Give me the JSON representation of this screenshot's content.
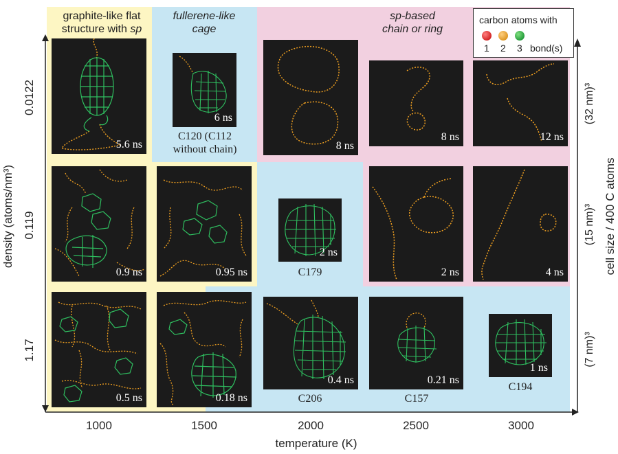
{
  "regions": {
    "graphite": {
      "line1": "graphite-like flat",
      "line2": "structure with ",
      "line2_italic": "sp"
    },
    "fullerene": {
      "line1": "fullerene-like",
      "line2": "cage"
    },
    "sp_chain": {
      "line1": "sp-based",
      "line2": "chain or ring"
    }
  },
  "legend": {
    "title": "carbon atoms with",
    "items": [
      {
        "num": "1",
        "color": "#e02020"
      },
      {
        "num": "2",
        "color": "#f0a020"
      },
      {
        "num": "3",
        "color": "#20b040"
      }
    ],
    "suffix": "bond(s)"
  },
  "x_axis": {
    "label": "temperature (K)",
    "ticks": [
      "1000",
      "1500",
      "2000",
      "2500",
      "3000"
    ]
  },
  "y_axis": {
    "label": "density (atoms/nm³)",
    "ticks": [
      "0.0122",
      "0.119",
      "1.17"
    ]
  },
  "right_axis": {
    "label": "cell size / 400 C atoms",
    "ticks": [
      "(32 nm)³",
      "(15 nm)³",
      "(7 nm)³"
    ]
  },
  "panels": {
    "r1c1": {
      "time": "5.6 ns"
    },
    "r1c2": {
      "time": "6 ns",
      "caption": "C120 (C112",
      "caption2": "without chain)"
    },
    "r1c3": {
      "time": "8 ns"
    },
    "r1c4": {
      "time": "8 ns"
    },
    "r1c5": {
      "time": "12 ns"
    },
    "r2c1": {
      "time": "0.9 ns"
    },
    "r2c2": {
      "time": "0.95 ns"
    },
    "r2c3": {
      "time": "2 ns",
      "caption": "C179"
    },
    "r2c4": {
      "time": "2 ns"
    },
    "r2c5": {
      "time": "4 ns"
    },
    "r3c1": {
      "time": "0.5 ns"
    },
    "r3c2": {
      "time": "0.18 ns"
    },
    "r3c3": {
      "time": "0.4 ns",
      "caption": "C206"
    },
    "r3c4": {
      "time": "0.21 ns",
      "caption": "C157"
    },
    "r3c5": {
      "time": "1 ns",
      "caption": "C194"
    }
  },
  "colors": {
    "bond_sp": "#f0a020",
    "bond_sp2": "#2fc060",
    "panel_bg": "#1b1b1b"
  }
}
